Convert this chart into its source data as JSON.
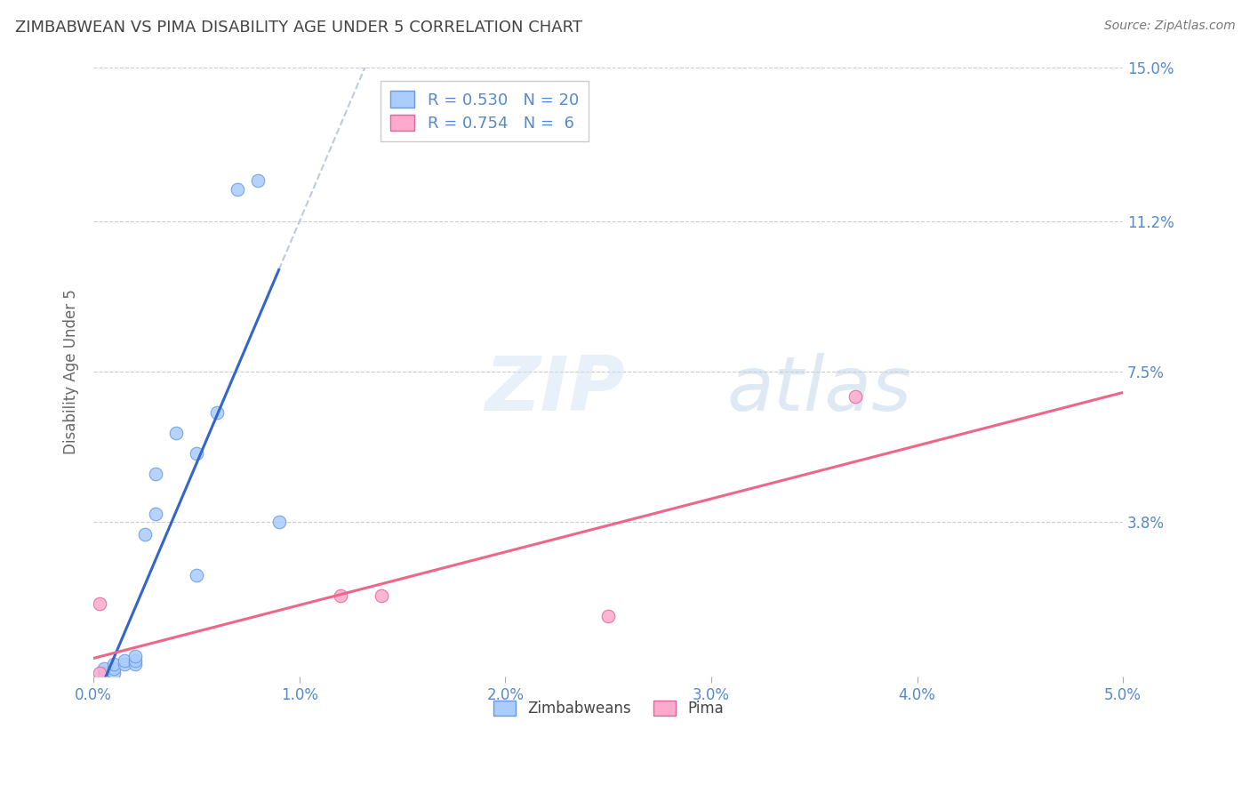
{
  "title": "ZIMBABWEAN VS PIMA DISABILITY AGE UNDER 5 CORRELATION CHART",
  "source": "Source: ZipAtlas.com",
  "ylabel": "Disability Age Under 5",
  "xlim": [
    0.0,
    0.05
  ],
  "ylim": [
    0.0,
    0.15
  ],
  "xtick_labels": [
    "0.0%",
    "1.0%",
    "2.0%",
    "3.0%",
    "4.0%",
    "5.0%"
  ],
  "xtick_values": [
    0.0,
    0.01,
    0.02,
    0.03,
    0.04,
    0.05
  ],
  "ytick_labels": [
    "15.0%",
    "11.2%",
    "7.5%",
    "3.8%"
  ],
  "ytick_values": [
    0.15,
    0.112,
    0.075,
    0.038
  ],
  "zimbabwean_x": [
    0.0005,
    0.0005,
    0.001,
    0.001,
    0.001,
    0.0015,
    0.0015,
    0.002,
    0.002,
    0.002,
    0.0025,
    0.003,
    0.003,
    0.004,
    0.005,
    0.005,
    0.006,
    0.007,
    0.008,
    0.009
  ],
  "zimbabwean_y": [
    0.001,
    0.002,
    0.001,
    0.002,
    0.003,
    0.003,
    0.004,
    0.003,
    0.004,
    0.005,
    0.035,
    0.04,
    0.05,
    0.06,
    0.025,
    0.055,
    0.065,
    0.12,
    0.122,
    0.038
  ],
  "pima_x": [
    0.0003,
    0.0003,
    0.012,
    0.014,
    0.025,
    0.037
  ],
  "pima_y": [
    0.001,
    0.018,
    0.02,
    0.02,
    0.015,
    0.069
  ],
  "zimbabwean_color": "#aaccff",
  "zimbabwean_edge_color": "#6699dd",
  "pima_color": "#ffaacc",
  "pima_edge_color": "#dd6699",
  "zimbabwean_line_color": "#3366cc",
  "pima_line_color": "#ee6688",
  "dash_color": "#bbccdd",
  "marker_size": 110,
  "R_zimbabwean": 0.53,
  "N_zimbabwean": 20,
  "R_pima": 0.754,
  "N_pima": 6,
  "title_color": "#444444",
  "axis_color": "#5588cc",
  "grid_color": "#cccccc",
  "background_color": "#ffffff"
}
